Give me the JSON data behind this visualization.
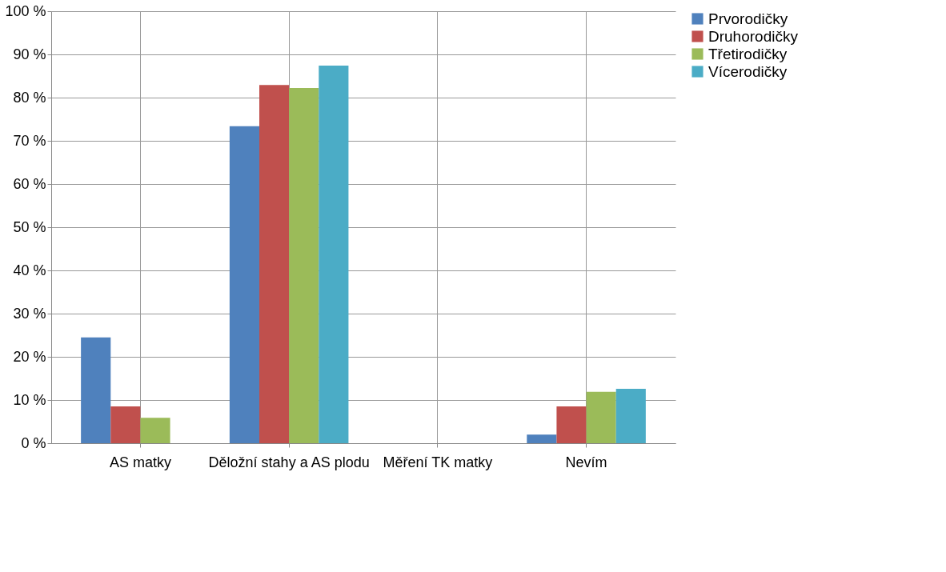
{
  "chart_data": {
    "type": "bar",
    "categories": [
      "AS matky",
      "Děložní stahy a AS plodu",
      "Měření TK matky",
      "Nevím"
    ],
    "series": [
      {
        "name": "Prvorodičky",
        "color": "#4f81bd",
        "values": [
          24.5,
          73.4,
          0,
          2.0
        ]
      },
      {
        "name": "Druhorodičky",
        "color": "#c0504d",
        "values": [
          8.5,
          82.9,
          0,
          8.5
        ]
      },
      {
        "name": "Třetirodičky",
        "color": "#9bbb59",
        "values": [
          5.9,
          82.2,
          0,
          11.9
        ]
      },
      {
        "name": "Vícerodičky",
        "color": "#4bacc6",
        "values": [
          0,
          87.4,
          0,
          12.6
        ]
      }
    ],
    "ylim": [
      0,
      100
    ],
    "yticks": [
      {
        "value": 0,
        "label": "0 %"
      },
      {
        "value": 10,
        "label": "10 %"
      },
      {
        "value": 20,
        "label": "20 %"
      },
      {
        "value": 30,
        "label": "30 %"
      },
      {
        "value": 40,
        "label": "40 %"
      },
      {
        "value": 50,
        "label": "50 %"
      },
      {
        "value": 60,
        "label": "60 %"
      },
      {
        "value": 70,
        "label": "70 %"
      },
      {
        "value": 80,
        "label": "80 %"
      },
      {
        "value": 90,
        "label": "90 %"
      },
      {
        "value": 100,
        "label": "100 %"
      }
    ],
    "grid": true,
    "legend": "right"
  }
}
